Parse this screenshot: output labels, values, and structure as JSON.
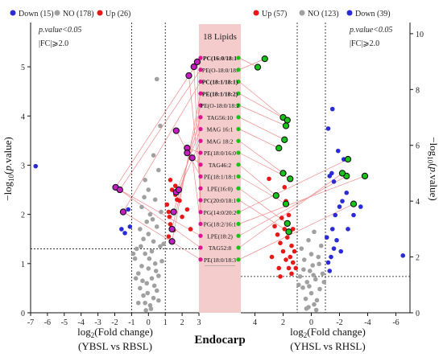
{
  "chart_data": [
    {
      "type": "scatter",
      "panel": "left",
      "xlabel_line1": "log",
      "xlabel_sub": "2",
      "xlabel_line1_rest": "(Fold change)",
      "xlabel_line2": "(YBSL vs RBSL)",
      "ylabel": "−log10(p.value)",
      "xlim": [
        -7,
        3
      ],
      "ylim": [
        0,
        5.9
      ],
      "x_ticks": [
        "-7",
        "-6",
        "-5",
        "-4",
        "-3",
        "-2",
        "-1",
        "0",
        "1",
        "2",
        "3"
      ],
      "y_ticks": [
        "0",
        "1",
        "2",
        "3",
        "4",
        "5"
      ],
      "threshold_fc": [
        -1,
        1
      ],
      "threshold_p": 1.3,
      "note_line1": "p.value<0.05",
      "note_line2": "|FC|⩾2.0",
      "legend": [
        {
          "label": "Down (15)",
          "color": "#2b2bd6"
        },
        {
          "label": "NO (178)",
          "color": "#a0a0a0"
        },
        {
          "label": "Up (26)",
          "color": "#e81818"
        }
      ],
      "points": {
        "down": [
          [
            -6.7,
            2.98
          ],
          [
            -1.6,
            1.7
          ],
          [
            -1.4,
            1.62
          ],
          [
            -1.1,
            1.75
          ],
          [
            -1.2,
            2.1
          ]
        ],
        "up": [
          [
            1.1,
            2.2
          ],
          [
            1.2,
            2.05
          ],
          [
            1.25,
            1.95
          ],
          [
            1.3,
            1.8
          ],
          [
            1.5,
            1.68
          ],
          [
            1.6,
            2.4
          ],
          [
            1.7,
            2.3
          ],
          [
            1.85,
            2.28
          ],
          [
            1.4,
            2.5
          ],
          [
            1.3,
            2.7
          ],
          [
            1.6,
            2.58
          ],
          [
            2.0,
            1.95
          ],
          [
            2.3,
            2.1
          ],
          [
            1.2,
            1.55
          ],
          [
            2.5,
            1.7
          ]
        ],
        "highlight": [
          [
            -1.95,
            2.55
          ],
          [
            -1.7,
            2.5
          ],
          [
            -1.5,
            2.05
          ],
          [
            1.4,
            1.45
          ],
          [
            1.4,
            1.7
          ],
          [
            1.5,
            2.05
          ],
          [
            1.65,
            2.45
          ],
          [
            1.8,
            2.5
          ],
          [
            2.3,
            3.35
          ],
          [
            2.3,
            3.25
          ],
          [
            1.65,
            3.7
          ],
          [
            2.4,
            4.82
          ],
          [
            2.7,
            5.0
          ],
          [
            2.9,
            5.1
          ],
          [
            2.6,
            3.15
          ]
        ],
        "no": [
          [
            -0.2,
            0.2
          ],
          [
            0.1,
            0.15
          ],
          [
            -0.3,
            0.35
          ],
          [
            0.3,
            0.3
          ],
          [
            -0.5,
            0.5
          ],
          [
            0.5,
            0.45
          ],
          [
            -0.1,
            0.6
          ],
          [
            0.2,
            0.7
          ],
          [
            -0.6,
            0.8
          ],
          [
            0.6,
            0.75
          ],
          [
            -0.4,
            0.95
          ],
          [
            0.4,
            1.0
          ],
          [
            -0.8,
            1.1
          ],
          [
            0.8,
            1.05
          ],
          [
            0.0,
            0.9
          ],
          [
            -0.2,
            1.2
          ],
          [
            0.2,
            1.25
          ],
          [
            -0.7,
            1.3
          ],
          [
            0.7,
            1.35
          ],
          [
            -0.3,
            1.5
          ],
          [
            0.3,
            1.45
          ],
          [
            0.0,
            1.6
          ],
          [
            -0.5,
            1.7
          ],
          [
            0.5,
            1.75
          ],
          [
            -0.1,
            1.85
          ],
          [
            0.1,
            2.0
          ],
          [
            -0.4,
            2.15
          ],
          [
            0.4,
            2.3
          ],
          [
            0.0,
            2.5
          ],
          [
            -0.2,
            2.7
          ],
          [
            0.6,
            2.9
          ],
          [
            0.3,
            3.2
          ],
          [
            0.7,
            3.8
          ],
          [
            0.5,
            4.75
          ],
          [
            0.9,
            1.4
          ],
          [
            -0.9,
            1.2
          ],
          [
            -0.6,
            0.2
          ],
          [
            0.6,
            0.25
          ],
          [
            -0.15,
            0.05
          ],
          [
            0.15,
            0.08
          ],
          [
            -0.35,
            0.65
          ],
          [
            0.35,
            0.55
          ],
          [
            0.05,
            1.1
          ],
          [
            -0.05,
            0.4
          ],
          [
            0.45,
            0.85
          ],
          [
            -0.45,
            1.35
          ],
          [
            0.25,
            1.9
          ],
          [
            -0.25,
            2.35
          ],
          [
            0.75,
            2.05
          ],
          [
            -0.75,
            0.7
          ]
        ]
      }
    },
    {
      "type": "scatter",
      "panel": "right",
      "xlabel_line1": "log",
      "xlabel_sub": "2",
      "xlabel_line1_rest": "(Fold change)",
      "xlabel_line2": "(YHSL vs RHSL)",
      "ylabel": "−log10(p.value)",
      "xlim": [
        5,
        -7
      ],
      "ylim": [
        0,
        10.4
      ],
      "x_ticks": [
        "4",
        "2",
        "0",
        "-2",
        "-4",
        "-6"
      ],
      "y_ticks": [
        "0",
        "2",
        "4",
        "6",
        "8",
        "10"
      ],
      "threshold_fc": [
        1,
        -1
      ],
      "threshold_p": 1.3,
      "note_line1": "p.value<0.05",
      "note_line2": "|FC|⩾2.0",
      "legend": [
        {
          "label": "Up (57)",
          "color": "#e81818"
        },
        {
          "label": "NO (123)",
          "color": "#a0a0a0"
        },
        {
          "label": "Down (39)",
          "color": "#2b2bd6"
        }
      ],
      "points": {
        "up": [
          [
            1.5,
            2.0
          ],
          [
            1.3,
            1.8
          ],
          [
            1.6,
            1.6
          ],
          [
            1.8,
            1.9
          ],
          [
            2.0,
            2.2
          ],
          [
            2.2,
            2.5
          ],
          [
            2.4,
            2.8
          ],
          [
            2.6,
            3.1
          ],
          [
            1.4,
            2.4
          ],
          [
            1.7,
            2.7
          ],
          [
            1.9,
            3.0
          ],
          [
            1.2,
            2.2
          ],
          [
            1.5,
            2.9
          ],
          [
            2.1,
            3.4
          ],
          [
            1.3,
            3.0
          ],
          [
            2.3,
            1.6
          ],
          [
            1.1,
            1.6
          ],
          [
            1.6,
            3.5
          ],
          [
            1.8,
            4.0
          ],
          [
            1.9,
            4.5
          ],
          [
            2.8,
            2.0
          ],
          [
            3.0,
            4.8
          ],
          [
            2.5,
            4.2
          ],
          [
            1.4,
            1.4
          ],
          [
            2.2,
            1.3
          ]
        ],
        "down": [
          [
            -1.2,
            1.8
          ],
          [
            -1.4,
            2.0
          ],
          [
            -1.6,
            2.3
          ],
          [
            -1.8,
            2.6
          ],
          [
            -1.5,
            3.0
          ],
          [
            -1.7,
            3.5
          ],
          [
            -2.0,
            3.8
          ],
          [
            -2.2,
            4.0
          ],
          [
            -2.5,
            4.3
          ],
          [
            -1.3,
            4.9
          ],
          [
            -1.6,
            4.7
          ],
          [
            -1.9,
            5.8
          ],
          [
            -2.3,
            5.5
          ],
          [
            -1.2,
            6.6
          ],
          [
            -1.5,
            7.3
          ],
          [
            -1.1,
            2.7
          ],
          [
            -2.6,
            3.0
          ],
          [
            -3.0,
            3.5
          ],
          [
            -3.5,
            3.8
          ],
          [
            -6.5,
            2.05
          ],
          [
            -1.3,
            1.5
          ],
          [
            -2.1,
            2.2
          ],
          [
            -1.45,
            5.0
          ]
        ],
        "highlight": [
          [
            3.8,
            8.8
          ],
          [
            3.3,
            9.1
          ],
          [
            2.0,
            7.0
          ],
          [
            1.7,
            6.9
          ],
          [
            1.8,
            6.7
          ],
          [
            1.9,
            6.2
          ],
          [
            2.3,
            5.9
          ],
          [
            2.0,
            5.0
          ],
          [
            1.5,
            4.8
          ],
          [
            2.5,
            4.2
          ],
          [
            1.8,
            3.9
          ],
          [
            1.7,
            3.2
          ],
          [
            1.6,
            2.9
          ],
          [
            -2.6,
            5.5
          ],
          [
            -3.8,
            4.9
          ],
          [
            -2.5,
            4.9
          ],
          [
            -2.2,
            5.0
          ],
          [
            -3.0,
            3.9
          ]
        ],
        "no": [
          [
            0.2,
            0.2
          ],
          [
            -0.2,
            0.3
          ],
          [
            0.4,
            0.5
          ],
          [
            -0.4,
            0.45
          ],
          [
            0.0,
            0.7
          ],
          [
            0.6,
            0.9
          ],
          [
            -0.6,
            0.85
          ],
          [
            0.3,
            1.1
          ],
          [
            -0.3,
            1.2
          ],
          [
            0.8,
            1.3
          ],
          [
            -0.8,
            1.4
          ],
          [
            0.1,
            1.5
          ],
          [
            -0.1,
            1.7
          ],
          [
            0.5,
            1.9
          ],
          [
            -0.5,
            2.0
          ],
          [
            0.7,
            2.3
          ],
          [
            -0.7,
            2.4
          ],
          [
            0.2,
            2.6
          ],
          [
            -0.2,
            2.9
          ],
          [
            0.9,
            1.0
          ],
          [
            -0.9,
            1.1
          ],
          [
            0.35,
            0.15
          ],
          [
            -0.35,
            0.1
          ],
          [
            0.15,
            0.95
          ],
          [
            -0.15,
            1.35
          ],
          [
            0.55,
            1.55
          ],
          [
            -0.55,
            1.75
          ],
          [
            0.0,
            2.1
          ]
        ]
      }
    }
  ],
  "center": {
    "header": "18 Lipids",
    "title": "Endocarp",
    "lipids": [
      {
        "label": "PC(16:0/18:1",
        "bold": true
      },
      {
        "label": "PE(O-18:0/18:",
        "bold": false
      },
      {
        "label": "PC(18:1/18:1)",
        "bold": true
      },
      {
        "label": "PE(18:1/18:2)",
        "bold": true
      },
      {
        "label": "PE(O-18:0/18:2",
        "bold": false
      },
      {
        "label": "TAG56:10",
        "bold": false
      },
      {
        "label": "MAG 16:1",
        "bold": false
      },
      {
        "label": "MAG 18:2",
        "bold": false
      },
      {
        "label": "PE(18:0/16:0",
        "bold": false
      },
      {
        "label": "TAG46:2",
        "bold": false
      },
      {
        "label": "PE(18:1/18:1",
        "bold": false
      },
      {
        "label": "LPE(16:0)",
        "bold": false
      },
      {
        "label": "PC(20:0/18:1",
        "bold": false
      },
      {
        "label": "PG(14:0/20:2",
        "bold": false
      },
      {
        "label": "PG(18:2/16:1",
        "bold": false
      },
      {
        "label": "LPE(18:2)",
        "bold": false
      },
      {
        "label": "TAG52:8",
        "bold": false
      },
      {
        "label": "PE(18:0/18:3",
        "bold": false
      }
    ]
  },
  "colors": {
    "up": "#e81818",
    "down": "#2b2bd6",
    "no": "#a0a0a0",
    "magenta": "#c31fc3",
    "green": "#17c417",
    "band": "#f4cccc",
    "pink_dot": "#e0138e"
  }
}
